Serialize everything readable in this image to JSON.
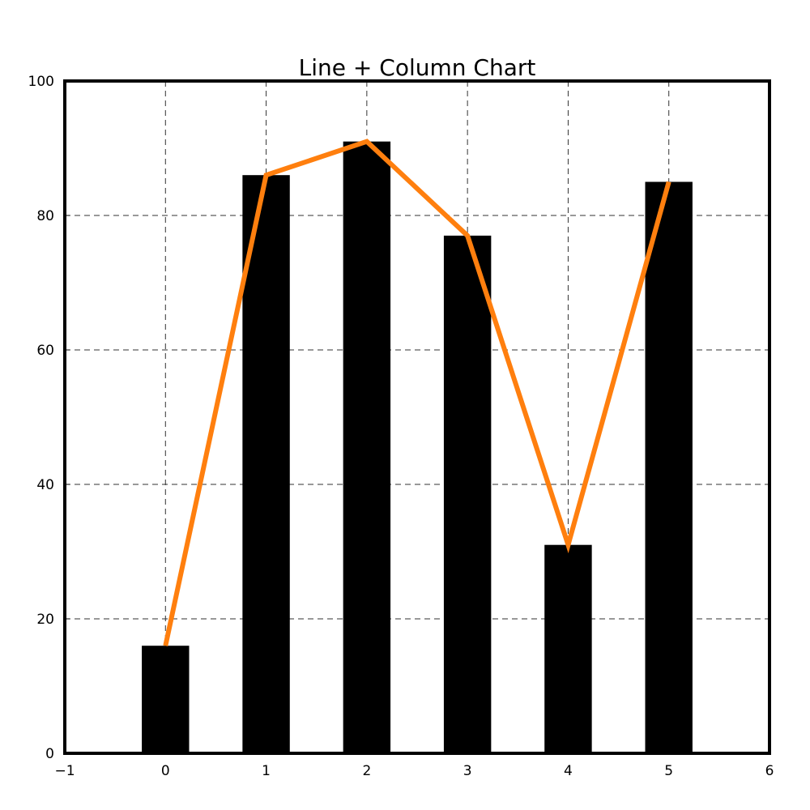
{
  "chart_data": {
    "type": "bar+line",
    "title": "Line + Column Chart",
    "xlabel": "",
    "ylabel": "",
    "x": [
      0,
      1,
      2,
      3,
      4,
      5
    ],
    "series": [
      {
        "name": "column",
        "type": "bar",
        "values": [
          16,
          86,
          91,
          77,
          31,
          85
        ]
      },
      {
        "name": "line",
        "type": "line",
        "values": [
          16,
          86,
          91,
          77,
          31,
          85
        ]
      }
    ],
    "xlim": [
      -1,
      6
    ],
    "ylim": [
      0,
      100
    ],
    "x_ticks": [
      -1,
      0,
      1,
      2,
      3,
      4,
      5,
      6
    ],
    "x_tick_labels": [
      "−1",
      "0",
      "1",
      "2",
      "3",
      "4",
      "5",
      "6"
    ],
    "y_ticks": [
      0,
      20,
      40,
      60,
      80,
      100
    ],
    "y_tick_labels": [
      "0",
      "20",
      "40",
      "60",
      "80",
      "100"
    ],
    "bar_width": 0.47,
    "grid": true,
    "legend": "none",
    "colors": {
      "bar": "#000000",
      "line": "#ff7f0e",
      "grid": "#333333",
      "frame": "#000000"
    }
  }
}
